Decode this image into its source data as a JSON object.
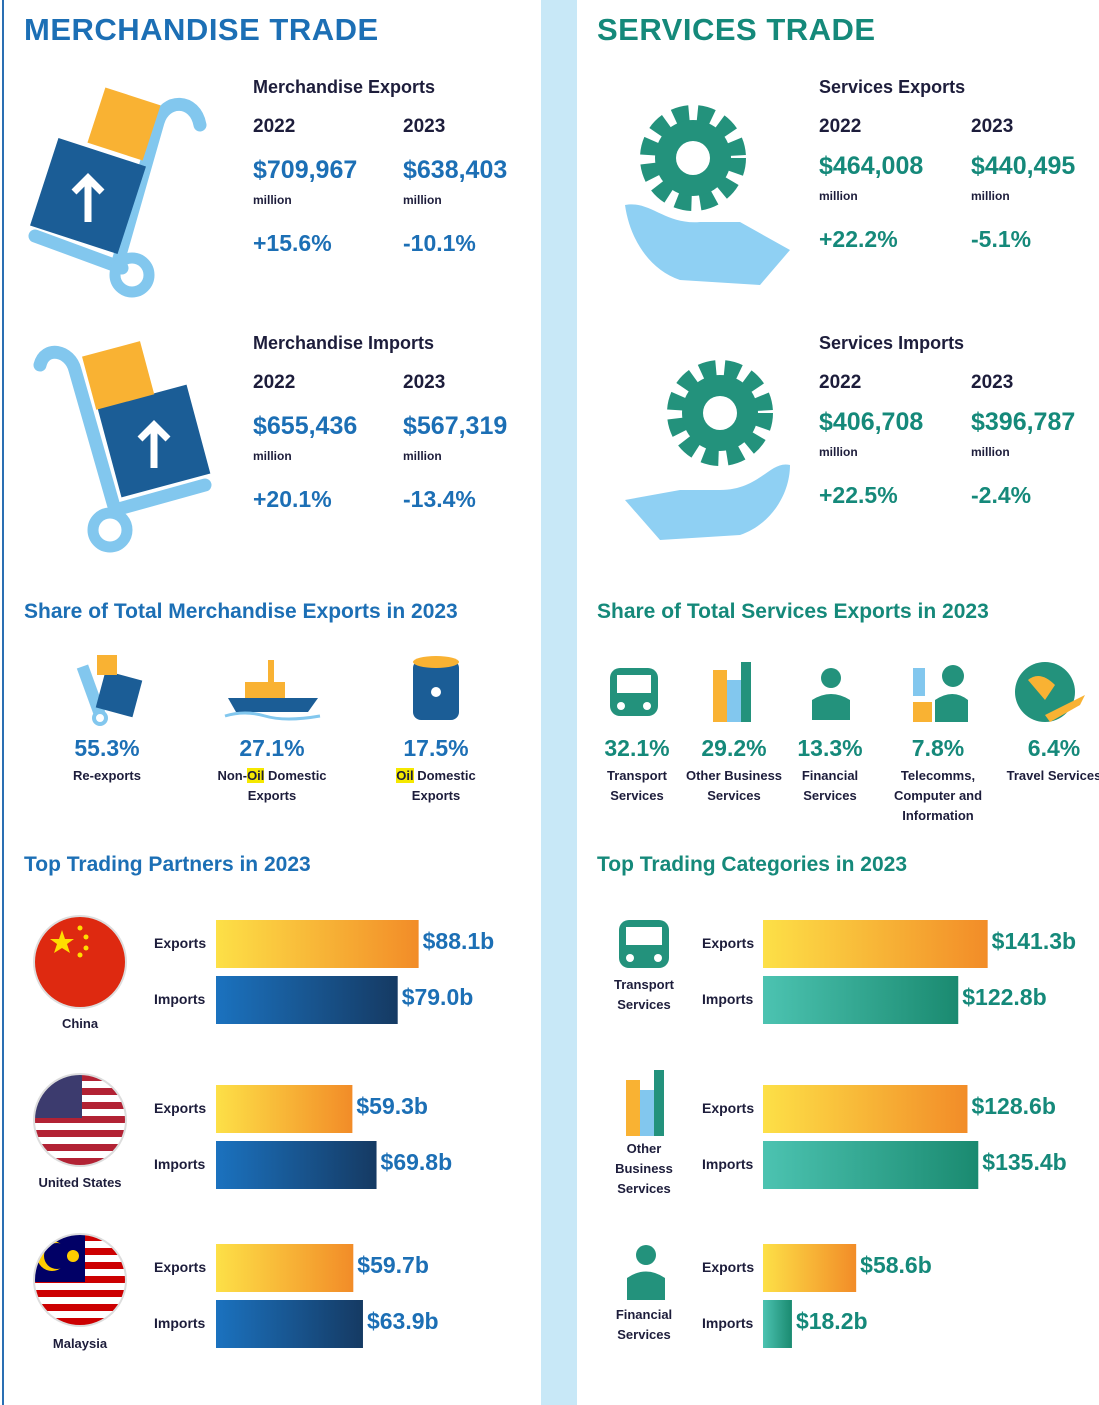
{
  "merchandise": {
    "title": "MERCHANDISE TRADE",
    "unit": "million",
    "exports": {
      "title": "Merchandise Exports",
      "years": [
        "2022",
        "2023"
      ],
      "values": [
        "$709,967",
        "$638,403"
      ],
      "changes": [
        "+15.6%",
        "-10.1%"
      ]
    },
    "imports": {
      "title": "Merchandise Imports",
      "years": [
        "2022",
        "2023"
      ],
      "values": [
        "$655,436",
        "$567,319"
      ],
      "changes": [
        "+20.1%",
        "-13.4%"
      ]
    },
    "share": {
      "title": "Share of Total Merchandise Exports in 2023",
      "items": [
        {
          "value": "55.3%",
          "label_parts": [
            "Re-exports"
          ]
        },
        {
          "value": "27.1%",
          "label_parts": [
            "Non-",
            "Oil",
            " Domestic Exports"
          ],
          "highlight_part": 1
        },
        {
          "value": "17.5%",
          "label_parts": [
            "Oil",
            " Domestic Exports"
          ],
          "highlight_part": 0
        }
      ]
    },
    "partners": {
      "title": "Top Trading Partners in 2023",
      "exports_text": "Exports",
      "imports_text": "Imports",
      "items": [
        {
          "name": "China",
          "exports": 88.1,
          "exports_label": "$88.1b",
          "imports": 79.0,
          "imports_label": "$79.0b"
        },
        {
          "name": "United States",
          "exports": 59.3,
          "exports_label": "$59.3b",
          "imports": 69.8,
          "imports_label": "$69.8b"
        },
        {
          "name": "Malaysia",
          "exports": 59.7,
          "exports_label": "$59.7b",
          "imports": 63.9,
          "imports_label": "$63.9b"
        }
      ]
    }
  },
  "services": {
    "title": "SERVICES TRADE",
    "unit": "million",
    "exports": {
      "title": "Services Exports",
      "years": [
        "2022",
        "2023"
      ],
      "values": [
        "$464,008",
        "$440,495"
      ],
      "changes": [
        "+22.2%",
        "-5.1%"
      ]
    },
    "imports": {
      "title": "Services Imports",
      "years": [
        "2022",
        "2023"
      ],
      "values": [
        "$406,708",
        "$396,787"
      ],
      "changes": [
        "+22.5%",
        "-2.4%"
      ]
    },
    "share": {
      "title": "Share of Total Services Exports in 2023",
      "items": [
        {
          "value": "32.1%",
          "label_parts": [
            "Transport Services"
          ]
        },
        {
          "value": "29.2%",
          "label_parts": [
            "Other Business Services"
          ]
        },
        {
          "value": "13.3%",
          "label_parts": [
            "Financial Services"
          ]
        },
        {
          "value": "7.8%",
          "label_parts": [
            "Telecomms, Computer and Information"
          ]
        },
        {
          "value": "6.4%",
          "label_parts": [
            "Travel Services"
          ]
        }
      ]
    },
    "categories": {
      "title": "Top Trading Categories in 2023",
      "exports_text": "Exports",
      "imports_text": "Imports",
      "items": [
        {
          "name": "Transport Services",
          "exports": 141.3,
          "exports_label": "$141.3b",
          "imports": 122.8,
          "imports_label": "$122.8b"
        },
        {
          "name": "Other Business Services",
          "exports": 128.6,
          "exports_label": "$128.6b",
          "imports": 135.4,
          "imports_label": "$135.4b"
        },
        {
          "name": "Financial Services",
          "exports": 58.6,
          "exports_label": "$58.6b",
          "imports": 18.2,
          "imports_label": "$18.2b"
        }
      ]
    }
  }
}
